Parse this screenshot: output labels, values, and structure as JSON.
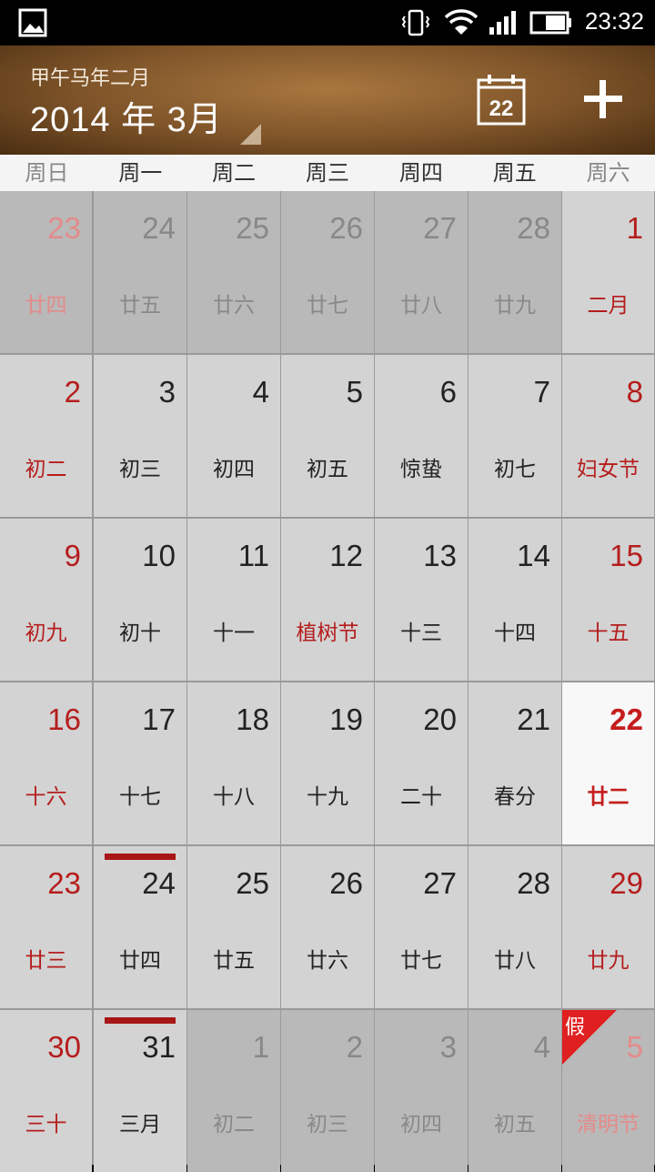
{
  "status": {
    "time": "23:32"
  },
  "header": {
    "lunar_year": "甲午马年二月",
    "month": "2014 年 3月",
    "today_icon_label": "22"
  },
  "weekdays": [
    "周日",
    "周一",
    "周二",
    "周三",
    "周四",
    "周五",
    "周六"
  ],
  "colors": {
    "accent_red": "#b51d1d",
    "header_brown": "#7d5328"
  },
  "weeks": [
    [
      {
        "day": "23",
        "lunar": "廿四",
        "other": true
      },
      {
        "day": "24",
        "lunar": "廿五",
        "other": true
      },
      {
        "day": "25",
        "lunar": "廿六",
        "other": true
      },
      {
        "day": "26",
        "lunar": "廿七",
        "other": true
      },
      {
        "day": "27",
        "lunar": "廿八",
        "other": true
      },
      {
        "day": "28",
        "lunar": "廿九",
        "other": true
      },
      {
        "day": "1",
        "lunar": "二月"
      }
    ],
    [
      {
        "day": "2",
        "lunar": "初二"
      },
      {
        "day": "3",
        "lunar": "初三"
      },
      {
        "day": "4",
        "lunar": "初四"
      },
      {
        "day": "5",
        "lunar": "初五"
      },
      {
        "day": "6",
        "lunar": "惊蛰"
      },
      {
        "day": "7",
        "lunar": "初七"
      },
      {
        "day": "8",
        "lunar": "妇女节"
      }
    ],
    [
      {
        "day": "9",
        "lunar": "初九"
      },
      {
        "day": "10",
        "lunar": "初十"
      },
      {
        "day": "11",
        "lunar": "十一"
      },
      {
        "day": "12",
        "lunar": "植树节",
        "red": true
      },
      {
        "day": "13",
        "lunar": "十三"
      },
      {
        "day": "14",
        "lunar": "十四"
      },
      {
        "day": "15",
        "lunar": "十五"
      }
    ],
    [
      {
        "day": "16",
        "lunar": "十六"
      },
      {
        "day": "17",
        "lunar": "十七"
      },
      {
        "day": "18",
        "lunar": "十八"
      },
      {
        "day": "19",
        "lunar": "十九"
      },
      {
        "day": "20",
        "lunar": "二十"
      },
      {
        "day": "21",
        "lunar": "春分"
      },
      {
        "day": "22",
        "lunar": "廿二",
        "today": true
      }
    ],
    [
      {
        "day": "23",
        "lunar": "廿三"
      },
      {
        "day": "24",
        "lunar": "廿四",
        "event": true
      },
      {
        "day": "25",
        "lunar": "廿五"
      },
      {
        "day": "26",
        "lunar": "廿六"
      },
      {
        "day": "27",
        "lunar": "廿七"
      },
      {
        "day": "28",
        "lunar": "廿八"
      },
      {
        "day": "29",
        "lunar": "廿九"
      }
    ],
    [
      {
        "day": "30",
        "lunar": "三十"
      },
      {
        "day": "31",
        "lunar": "三月",
        "event": true
      },
      {
        "day": "1",
        "lunar": "初二",
        "other": true
      },
      {
        "day": "2",
        "lunar": "初三",
        "other": true
      },
      {
        "day": "3",
        "lunar": "初四",
        "other": true
      },
      {
        "day": "4",
        "lunar": "初五",
        "other": true
      },
      {
        "day": "5",
        "lunar": "清明节",
        "other": true,
        "holiday": "假"
      }
    ]
  ]
}
